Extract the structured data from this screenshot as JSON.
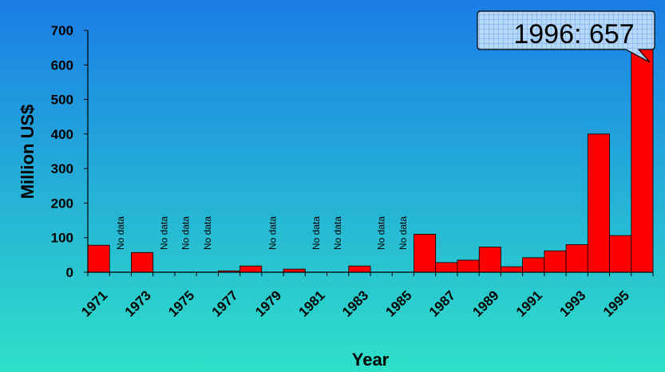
{
  "colors": {
    "background_top": "#1a7de6",
    "background_bottom": "#2fe0c8",
    "bar_fill": "#ff0000",
    "bar_stroke": "#000000",
    "callout_fill": "#b8d8f8",
    "callout_grid": "#6aa8e8"
  },
  "chart_data": {
    "type": "bar",
    "title": "",
    "xlabel": "Year",
    "ylabel": "Million US$",
    "ylim": [
      0,
      700
    ],
    "yticks": [
      0,
      100,
      200,
      300,
      400,
      500,
      600,
      700
    ],
    "grid": false,
    "legend": "none",
    "categories": [
      "1971",
      "1972",
      "1973",
      "1974",
      "1975",
      "1976",
      "1977",
      "1978",
      "1979",
      "1980",
      "1981",
      "1982",
      "1983",
      "1984",
      "1985",
      "1986",
      "1987",
      "1988",
      "1989",
      "1990",
      "1991",
      "1992",
      "1993",
      "1994",
      "1995",
      "1996"
    ],
    "x_tick_labels": [
      "1971",
      "1973",
      "1975",
      "1977",
      "1979",
      "1981",
      "1983",
      "1985",
      "1987",
      "1989",
      "1991",
      "1993",
      "1995"
    ],
    "values": [
      78,
      null,
      57,
      null,
      null,
      null,
      4,
      18,
      null,
      9,
      null,
      null,
      18,
      null,
      null,
      110,
      28,
      35,
      73,
      16,
      42,
      62,
      80,
      400,
      106,
      657
    ],
    "missing_label": "No data",
    "annotation": "1996: 657"
  }
}
